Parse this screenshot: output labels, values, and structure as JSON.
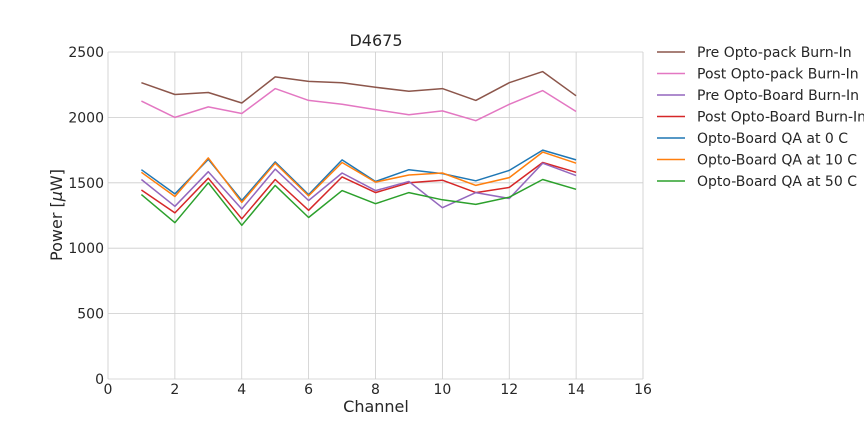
{
  "chart_data": {
    "type": "line",
    "title": "D4675",
    "xlabel": "Channel",
    "ylabel_prefix": "Power [",
    "ylabel_unit_italic": "μ",
    "ylabel_suffix": "W]",
    "xlim": [
      0,
      16
    ],
    "ylim": [
      0,
      2500
    ],
    "xticks": [
      0,
      2,
      4,
      6,
      8,
      10,
      12,
      14,
      16
    ],
    "yticks": [
      0,
      500,
      1000,
      1500,
      2000,
      2500
    ],
    "grid": true,
    "legend_position": "outside-right",
    "x": [
      1,
      2,
      3,
      4,
      5,
      6,
      7,
      8,
      9,
      10,
      11,
      12,
      13,
      14
    ],
    "series": [
      {
        "name": "Pre Opto-pack Burn-In",
        "color": "#8c564b",
        "values": [
          2265,
          2175,
          2190,
          2110,
          2310,
          2275,
          2265,
          2230,
          2200,
          2220,
          2130,
          2265,
          2350,
          2165
        ]
      },
      {
        "name": "Post Opto-pack Burn-In",
        "color": "#e377c2",
        "values": [
          2125,
          2000,
          2080,
          2030,
          2220,
          2130,
          2100,
          2060,
          2020,
          2050,
          1975,
          2100,
          2205,
          2045
        ]
      },
      {
        "name": "Pre Opto-Board Burn-In",
        "color": "#9467bd",
        "values": [
          1525,
          1320,
          1585,
          1300,
          1605,
          1365,
          1575,
          1440,
          1510,
          1310,
          1425,
          1380,
          1650,
          1555
        ]
      },
      {
        "name": "Post Opto-Board Burn-In",
        "color": "#d62728",
        "values": [
          1445,
          1270,
          1535,
          1225,
          1525,
          1290,
          1545,
          1425,
          1500,
          1520,
          1425,
          1465,
          1655,
          1580
        ]
      },
      {
        "name": "Opto-Board QA at 0 C",
        "color": "#1f77b4",
        "values": [
          1600,
          1415,
          1680,
          1365,
          1660,
          1410,
          1675,
          1510,
          1600,
          1570,
          1515,
          1595,
          1750,
          1675
        ]
      },
      {
        "name": "Opto-Board QA at 10 C",
        "color": "#ff7f0e",
        "values": [
          1580,
          1395,
          1690,
          1350,
          1650,
          1400,
          1655,
          1505,
          1560,
          1575,
          1480,
          1540,
          1735,
          1650
        ]
      },
      {
        "name": "Opto-Board QA at 50 C",
        "color": "#2ca02c",
        "values": [
          1410,
          1195,
          1500,
          1175,
          1480,
          1235,
          1440,
          1340,
          1425,
          1370,
          1335,
          1390,
          1525,
          1450
        ]
      }
    ]
  }
}
